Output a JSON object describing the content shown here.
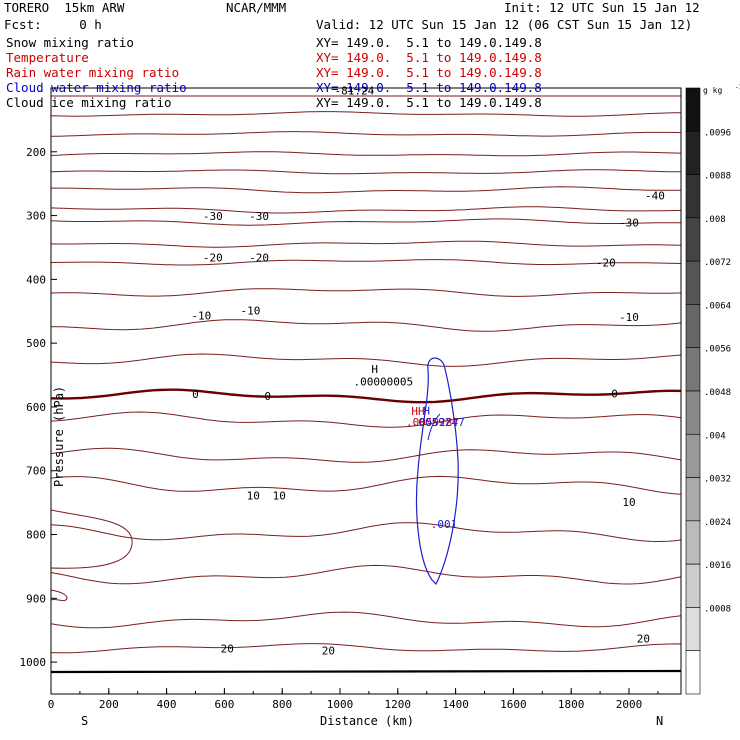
{
  "header": {
    "model": "TORERO  15km ARW",
    "center": "NCAR/MMM",
    "init": "Init: 12 UTC Sun 15 Jan 12",
    "fcst": "Fcst:     0 h",
    "valid": "Valid: 12 UTC Sun 15 Jan 12 (06 CST Sun 15 Jan 12)"
  },
  "fields": [
    {
      "label": "Snow mixing ratio",
      "xy": "XY= 149.0.  5.1 to 149.0.149.8",
      "color": "#000000"
    },
    {
      "label": "Temperature",
      "xy": "XY= 149.0.  5.1 to 149.0.149.8",
      "color": "#cc0000"
    },
    {
      "label": "Rain water mixing ratio",
      "xy": "XY= 149.0.  5.1 to 149.0.149.8",
      "color": "#cc0000"
    },
    {
      "label": "Cloud water mixing ratio",
      "xy": "XY= 149.0.  5.1 to 149.0.149.8",
      "color": "#0000cc"
    },
    {
      "label": "Cloud ice mixing ratio",
      "xy": "XY= 149.0.  5.1 to 149.0.149.8",
      "color": "#000000"
    }
  ],
  "chart_data": {
    "type": "contour-cross-section",
    "xlabel": "Distance (km)",
    "ylabel": "Pressure (hPa)",
    "xlim": [
      0,
      2180
    ],
    "ylim": [
      1050,
      100
    ],
    "x_ticks": [
      0,
      200,
      400,
      600,
      800,
      1000,
      1200,
      1400,
      1600,
      1800,
      2000
    ],
    "y_ticks": [
      200,
      300,
      400,
      500,
      600,
      700,
      800,
      900,
      1000
    ],
    "x_start_label": "S",
    "x_end_label": "N",
    "colorbar": {
      "unit": "g kg",
      "unit_exp": "-1",
      "ticks": [
        ".0096",
        ".0088",
        ".008",
        ".0072",
        ".0064",
        ".0056",
        ".0048",
        ".004",
        ".0032",
        ".0024",
        ".0016",
        ".0008"
      ],
      "bands": [
        "#111111",
        "#222222",
        "#333333",
        "#444444",
        "#555555",
        "#666666",
        "#777777",
        "#888888",
        "#999999",
        "#aaaaaa",
        "#bbbbbb",
        "#cccccc",
        "#dddddd",
        "#ffffff"
      ]
    },
    "temperature_labels": [
      {
        "text": "-81.24",
        "x": 1050,
        "p": 110
      },
      {
        "text": "-40",
        "x": 2090,
        "p": 275
      },
      {
        "text": "-30",
        "x": 560,
        "p": 307
      },
      {
        "text": "-30",
        "x": 720,
        "p": 307
      },
      {
        "text": "-30",
        "x": 2000,
        "p": 317
      },
      {
        "text": "-20",
        "x": 560,
        "p": 372
      },
      {
        "text": "-20",
        "x": 720,
        "p": 372
      },
      {
        "text": "-20",
        "x": 1920,
        "p": 380
      },
      {
        "text": "-10",
        "x": 520,
        "p": 463
      },
      {
        "text": "-10",
        "x": 690,
        "p": 455
      },
      {
        "text": "-10",
        "x": 2000,
        "p": 465
      },
      {
        "text": "0",
        "x": 500,
        "p": 586
      },
      {
        "text": "0",
        "x": 750,
        "p": 589
      },
      {
        "text": "0",
        "x": 1950,
        "p": 585
      },
      {
        "text": "10",
        "x": 700,
        "p": 745
      },
      {
        "text": "10",
        "x": 790,
        "p": 745
      },
      {
        "text": "10",
        "x": 2000,
        "p": 755
      },
      {
        "text": "20",
        "x": 2050,
        "p": 969
      },
      {
        "text": "20",
        "x": 610,
        "p": 985
      },
      {
        "text": "20",
        "x": 960,
        "p": 988
      }
    ],
    "snow_labels": [
      {
        "text": "H",
        "x": 1120,
        "p": 547
      },
      {
        "text": ".00000005",
        "x": 1150,
        "p": 566
      }
    ],
    "rain_labels": [
      {
        "text": "HH",
        "x": 1270,
        "p": 613
      },
      {
        "text": ".0059287",
        "x": 1320,
        "p": 630
      }
    ],
    "cloud_water_labels": [
      {
        "text": "H",
        "x": 1300,
        "p": 612
      },
      {
        "text": ".0059247",
        "x": 1340,
        "p": 630
      },
      {
        "text": ".001",
        "x": 1360,
        "p": 790
      }
    ]
  }
}
